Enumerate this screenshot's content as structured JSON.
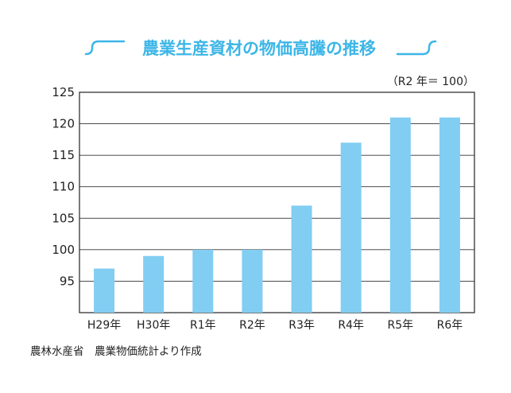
{
  "chart_data": {
    "type": "bar",
    "title": "農業生産資材の物価高騰の推移",
    "unit_note": "（R2 年＝ 100）",
    "categories": [
      "H29年",
      "H30年",
      "R1年",
      "R2年",
      "R3年",
      "R4年",
      "R5年",
      "R6年"
    ],
    "values": [
      97,
      99,
      100,
      100,
      107,
      117,
      121,
      121
    ],
    "ylim": [
      90,
      125
    ],
    "yticks": [
      95,
      100,
      105,
      110,
      115,
      120,
      125
    ],
    "xlabel": "",
    "ylabel": "",
    "grid": true,
    "bar_color": "#82cdf2",
    "title_color": "#3db6e7"
  },
  "source": "農林水産省　農業物価統計より作成"
}
